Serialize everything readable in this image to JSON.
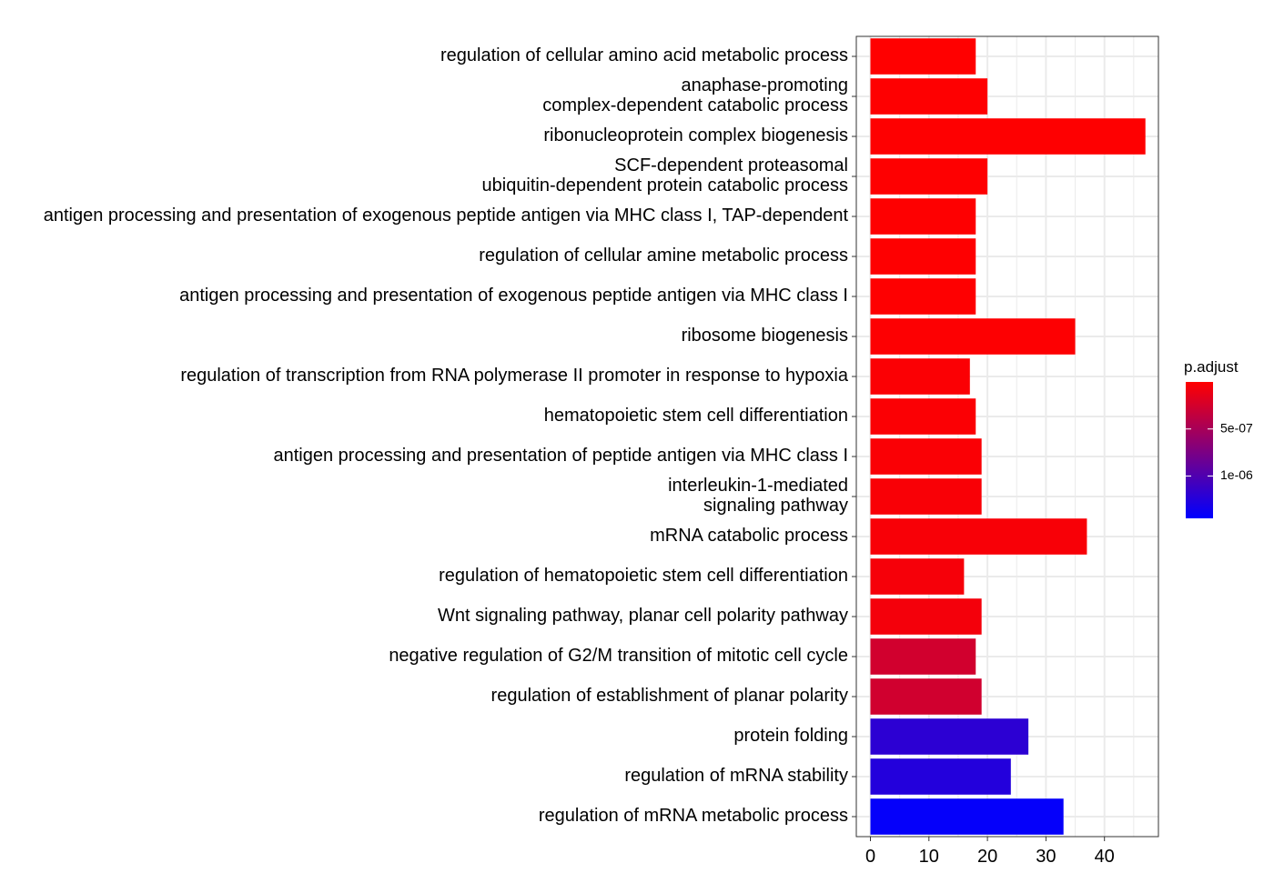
{
  "chart_data": {
    "type": "bar",
    "orientation": "horizontal",
    "categories": [
      "regulation of cellular amino acid metabolic process",
      "anaphase-promoting\ncomplex-dependent catabolic process",
      "ribonucleoprotein complex biogenesis",
      "SCF-dependent proteasomal\nubiquitin-dependent protein catabolic process",
      "antigen processing and presentation of exogenous peptide antigen via MHC class I, TAP-dependent",
      "regulation of cellular amine metabolic process",
      "antigen processing and presentation of exogenous peptide antigen via MHC class I",
      "ribosome biogenesis",
      "regulation of transcription from RNA polymerase II promoter in response to hypoxia",
      "hematopoietic stem cell differentiation",
      "antigen processing and presentation of peptide antigen via MHC class I",
      "interleukin-1-mediated\nsignaling pathway",
      "mRNA catabolic process",
      "regulation of hematopoietic stem cell differentiation",
      "Wnt signaling pathway, planar cell polarity pathway",
      "negative regulation of G2/M transition of mitotic cell cycle",
      "regulation of establishment of planar polarity",
      "protein folding",
      "regulation of mRNA stability",
      "regulation of mRNA metabolic process"
    ],
    "values": [
      18,
      20,
      47,
      20,
      18,
      18,
      18,
      35,
      17,
      18,
      19,
      19,
      37,
      16,
      19,
      18,
      19,
      27,
      24,
      33
    ],
    "p_adjust": [
      2e-09,
      3e-09,
      4e-09,
      5e-09,
      6e-09,
      7e-09,
      8e-09,
      9e-09,
      2e-08,
      2.5e-08,
      3e-08,
      3.5e-08,
      4e-08,
      5e-08,
      6e-08,
      2.6e-07,
      2.7e-07,
      1.2e-06,
      1.25e-06,
      1.42e-06
    ],
    "xlim": [
      0,
      49
    ],
    "xticks": [
      0,
      10,
      20,
      30,
      40
    ],
    "grid": true,
    "legend": {
      "title": "p.adjust",
      "position": "right",
      "color_low": "#ff0000",
      "color_high": "#0000ff",
      "min": 0,
      "max": 1.45e-06,
      "ticks": [
        {
          "value": 5e-07,
          "label": "5e-07"
        },
        {
          "value": 1e-06,
          "label": "1e-06"
        }
      ]
    }
  }
}
